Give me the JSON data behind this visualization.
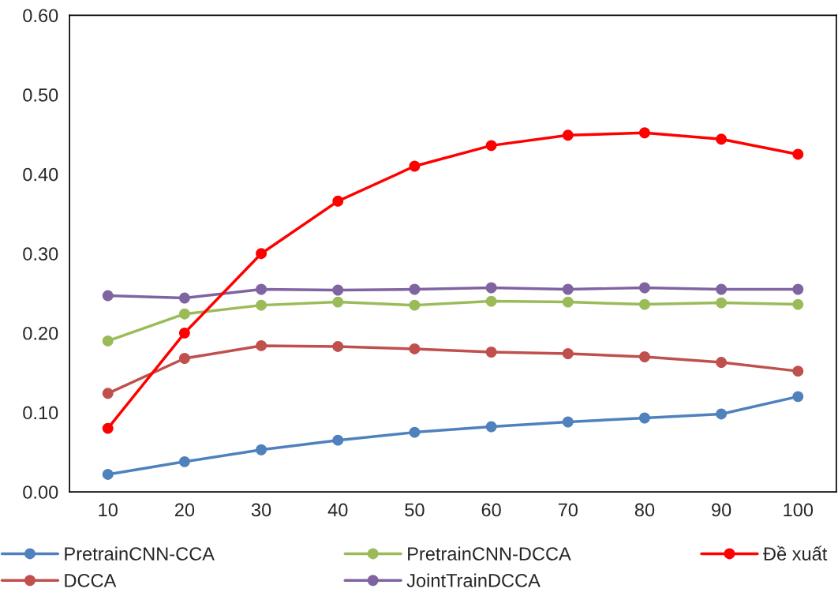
{
  "chart_data": {
    "type": "line",
    "categories": [
      "10",
      "20",
      "30",
      "40",
      "50",
      "60",
      "70",
      "80",
      "90",
      "100"
    ],
    "series": [
      {
        "name": "PretrainCNN-CCA",
        "color": "#4f81bd",
        "values": [
          0.022,
          0.038,
          0.053,
          0.065,
          0.075,
          0.082,
          0.088,
          0.093,
          0.098,
          0.12
        ]
      },
      {
        "name": "DCCA",
        "color": "#c0504d",
        "values": [
          0.124,
          0.168,
          0.184,
          0.183,
          0.18,
          0.176,
          0.174,
          0.17,
          0.163,
          0.152
        ]
      },
      {
        "name": "PretrainCNN-DCCA",
        "color": "#9bbb59",
        "values": [
          0.19,
          0.224,
          0.235,
          0.239,
          0.235,
          0.24,
          0.239,
          0.236,
          0.238,
          0.236
        ]
      },
      {
        "name": "JointTrainDCCA",
        "color": "#8064a2",
        "values": [
          0.247,
          0.244,
          0.255,
          0.254,
          0.255,
          0.257,
          0.255,
          0.257,
          0.255,
          0.255
        ]
      },
      {
        "name": "Đề xuất",
        "color": "#ff0000",
        "values": [
          0.08,
          0.2,
          0.3,
          0.366,
          0.41,
          0.436,
          0.449,
          0.452,
          0.444,
          0.425
        ]
      }
    ],
    "ylim": [
      0,
      0.6
    ],
    "yticks": [
      {
        "value": 0,
        "label": "0.00"
      },
      {
        "value": 0.1,
        "label": "0.10"
      },
      {
        "value": 0.2,
        "label": "0.20"
      },
      {
        "value": 0.3,
        "label": "0.30"
      },
      {
        "value": 0.4,
        "label": "0.40"
      },
      {
        "value": 0.5,
        "label": "0.50"
      },
      {
        "value": 0.6,
        "label": "0.60"
      }
    ],
    "grid": false,
    "legend": "bottom",
    "marker": "circle",
    "line_style": "solid"
  }
}
